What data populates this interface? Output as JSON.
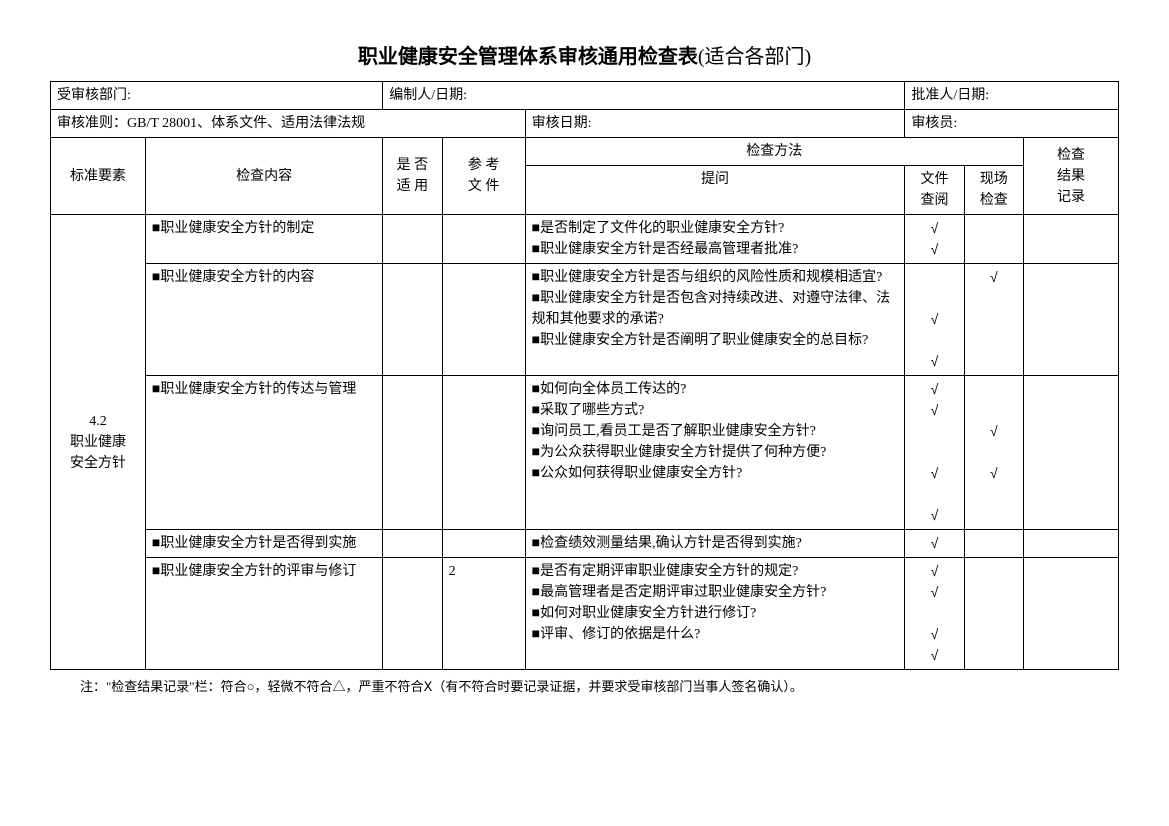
{
  "title": {
    "bold": "职业健康安全管理体系审核通用检查表",
    "normal": "(适合各部门)"
  },
  "header": {
    "dept_label": "受审核部门:",
    "preparer_label": "编制人/日期:",
    "approver_label": "批准人/日期:",
    "criteria_label": "审核准则：GB/T 28001、体系文件、适用法律法规",
    "audit_date_label": "审核日期:",
    "auditor_label": "审核员:"
  },
  "col": {
    "c1": "标准要素",
    "c2": "检查内容",
    "c3": "是 否\n适 用",
    "c4": "参 考\n文 件",
    "c5": "检查方法",
    "c5a": "提问",
    "c5b": "文件\n查阅",
    "c5c": "现场\n检查",
    "c6": "检查\n结果\n记录"
  },
  "section": {
    "id": "4.2\n职业健康\n安全方针"
  },
  "rows": [
    {
      "content": "■职业健康安全方针的制定",
      "ref": "",
      "q": "■是否制定了文件化的职业健康安全方针?\n■职业健康安全方针是否经最高管理者批准?",
      "doc": "√\n√",
      "site": ""
    },
    {
      "content": "■职业健康安全方针的内容",
      "ref": "",
      "q": "■职业健康安全方针是否与组织的风险性质和规模相适宜?\n■职业健康安全方针是否包含对持续改进、对遵守法律、法规和其他要求的承诺?\n■职业健康安全方针是否阐明了职业健康安全的总目标?",
      "doc": "\n\n√\n\n√",
      "site": "√"
    },
    {
      "content": "■职业健康安全方针的传达与管理",
      "ref": "",
      "q": "■如何向全体员工传达的?\n■采取了哪些方式?\n■询问员工,看员工是否了解职业健康安全方针?\n■为公众获得职业健康安全方针提供了何种方便?\n■公众如何获得职业健康安全方针?",
      "doc": "√\n√\n\n\n√\n\n√",
      "site": "\n\n√\n\n√"
    },
    {
      "content": "■职业健康安全方针是否得到实施",
      "ref": "",
      "q": "■检查绩效测量结果,确认方针是否得到实施?",
      "doc": "√",
      "site": ""
    },
    {
      "content": "■职业健康安全方针的评审与修订",
      "ref": "2",
      "q": "■是否有定期评审职业健康安全方针的规定?\n■最高管理者是否定期评审过职业健康安全方针?\n■如何对职业健康安全方针进行修订?\n■评审、修订的依据是什么?",
      "doc": "√\n√\n\n√\n√",
      "site": ""
    }
  ],
  "footnote": "注：\"检查结果记录\"栏：符合○，轻微不符合△，严重不符合Ⅹ（有不符合时要记录证据，并要求受审核部门当事人签名确认）。",
  "style": {
    "background": "#ffffff",
    "border_color": "#000000",
    "text_color": "#000000",
    "title_fontsize": 20,
    "body_fontsize": 14,
    "col_widths_pct": [
      8,
      20,
      5,
      7,
      32,
      5,
      5,
      8
    ]
  }
}
